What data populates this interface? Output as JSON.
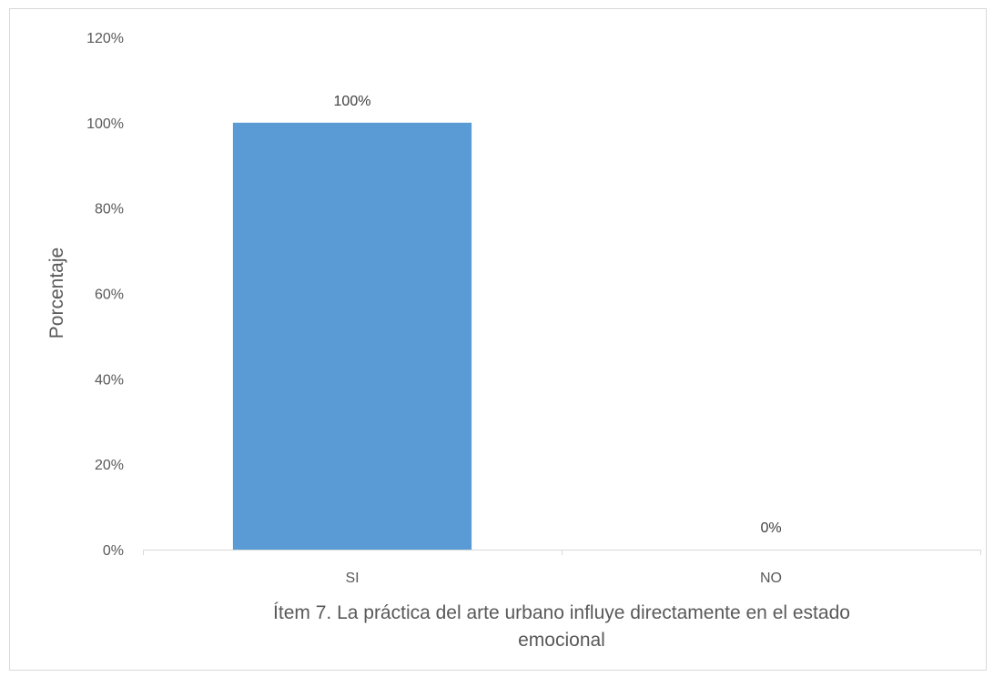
{
  "chart_data": {
    "type": "bar",
    "categories": [
      "SI",
      "NO"
    ],
    "values": [
      100,
      0
    ],
    "data_labels": [
      "100%",
      "0%"
    ],
    "yticks": [
      "0%",
      "20%",
      "40%",
      "60%",
      "80%",
      "100%",
      "120%"
    ],
    "ylim": [
      0,
      120
    ],
    "ylabel": "Porcentaje",
    "xlabel_lines": [
      "Ítem 7. La práctica del  arte urbano influye directamente en el estado",
      "emocional"
    ],
    "grid": false,
    "legend": "none",
    "bar_color": "#5b9bd5",
    "axis_color": "#d9d9d9"
  }
}
